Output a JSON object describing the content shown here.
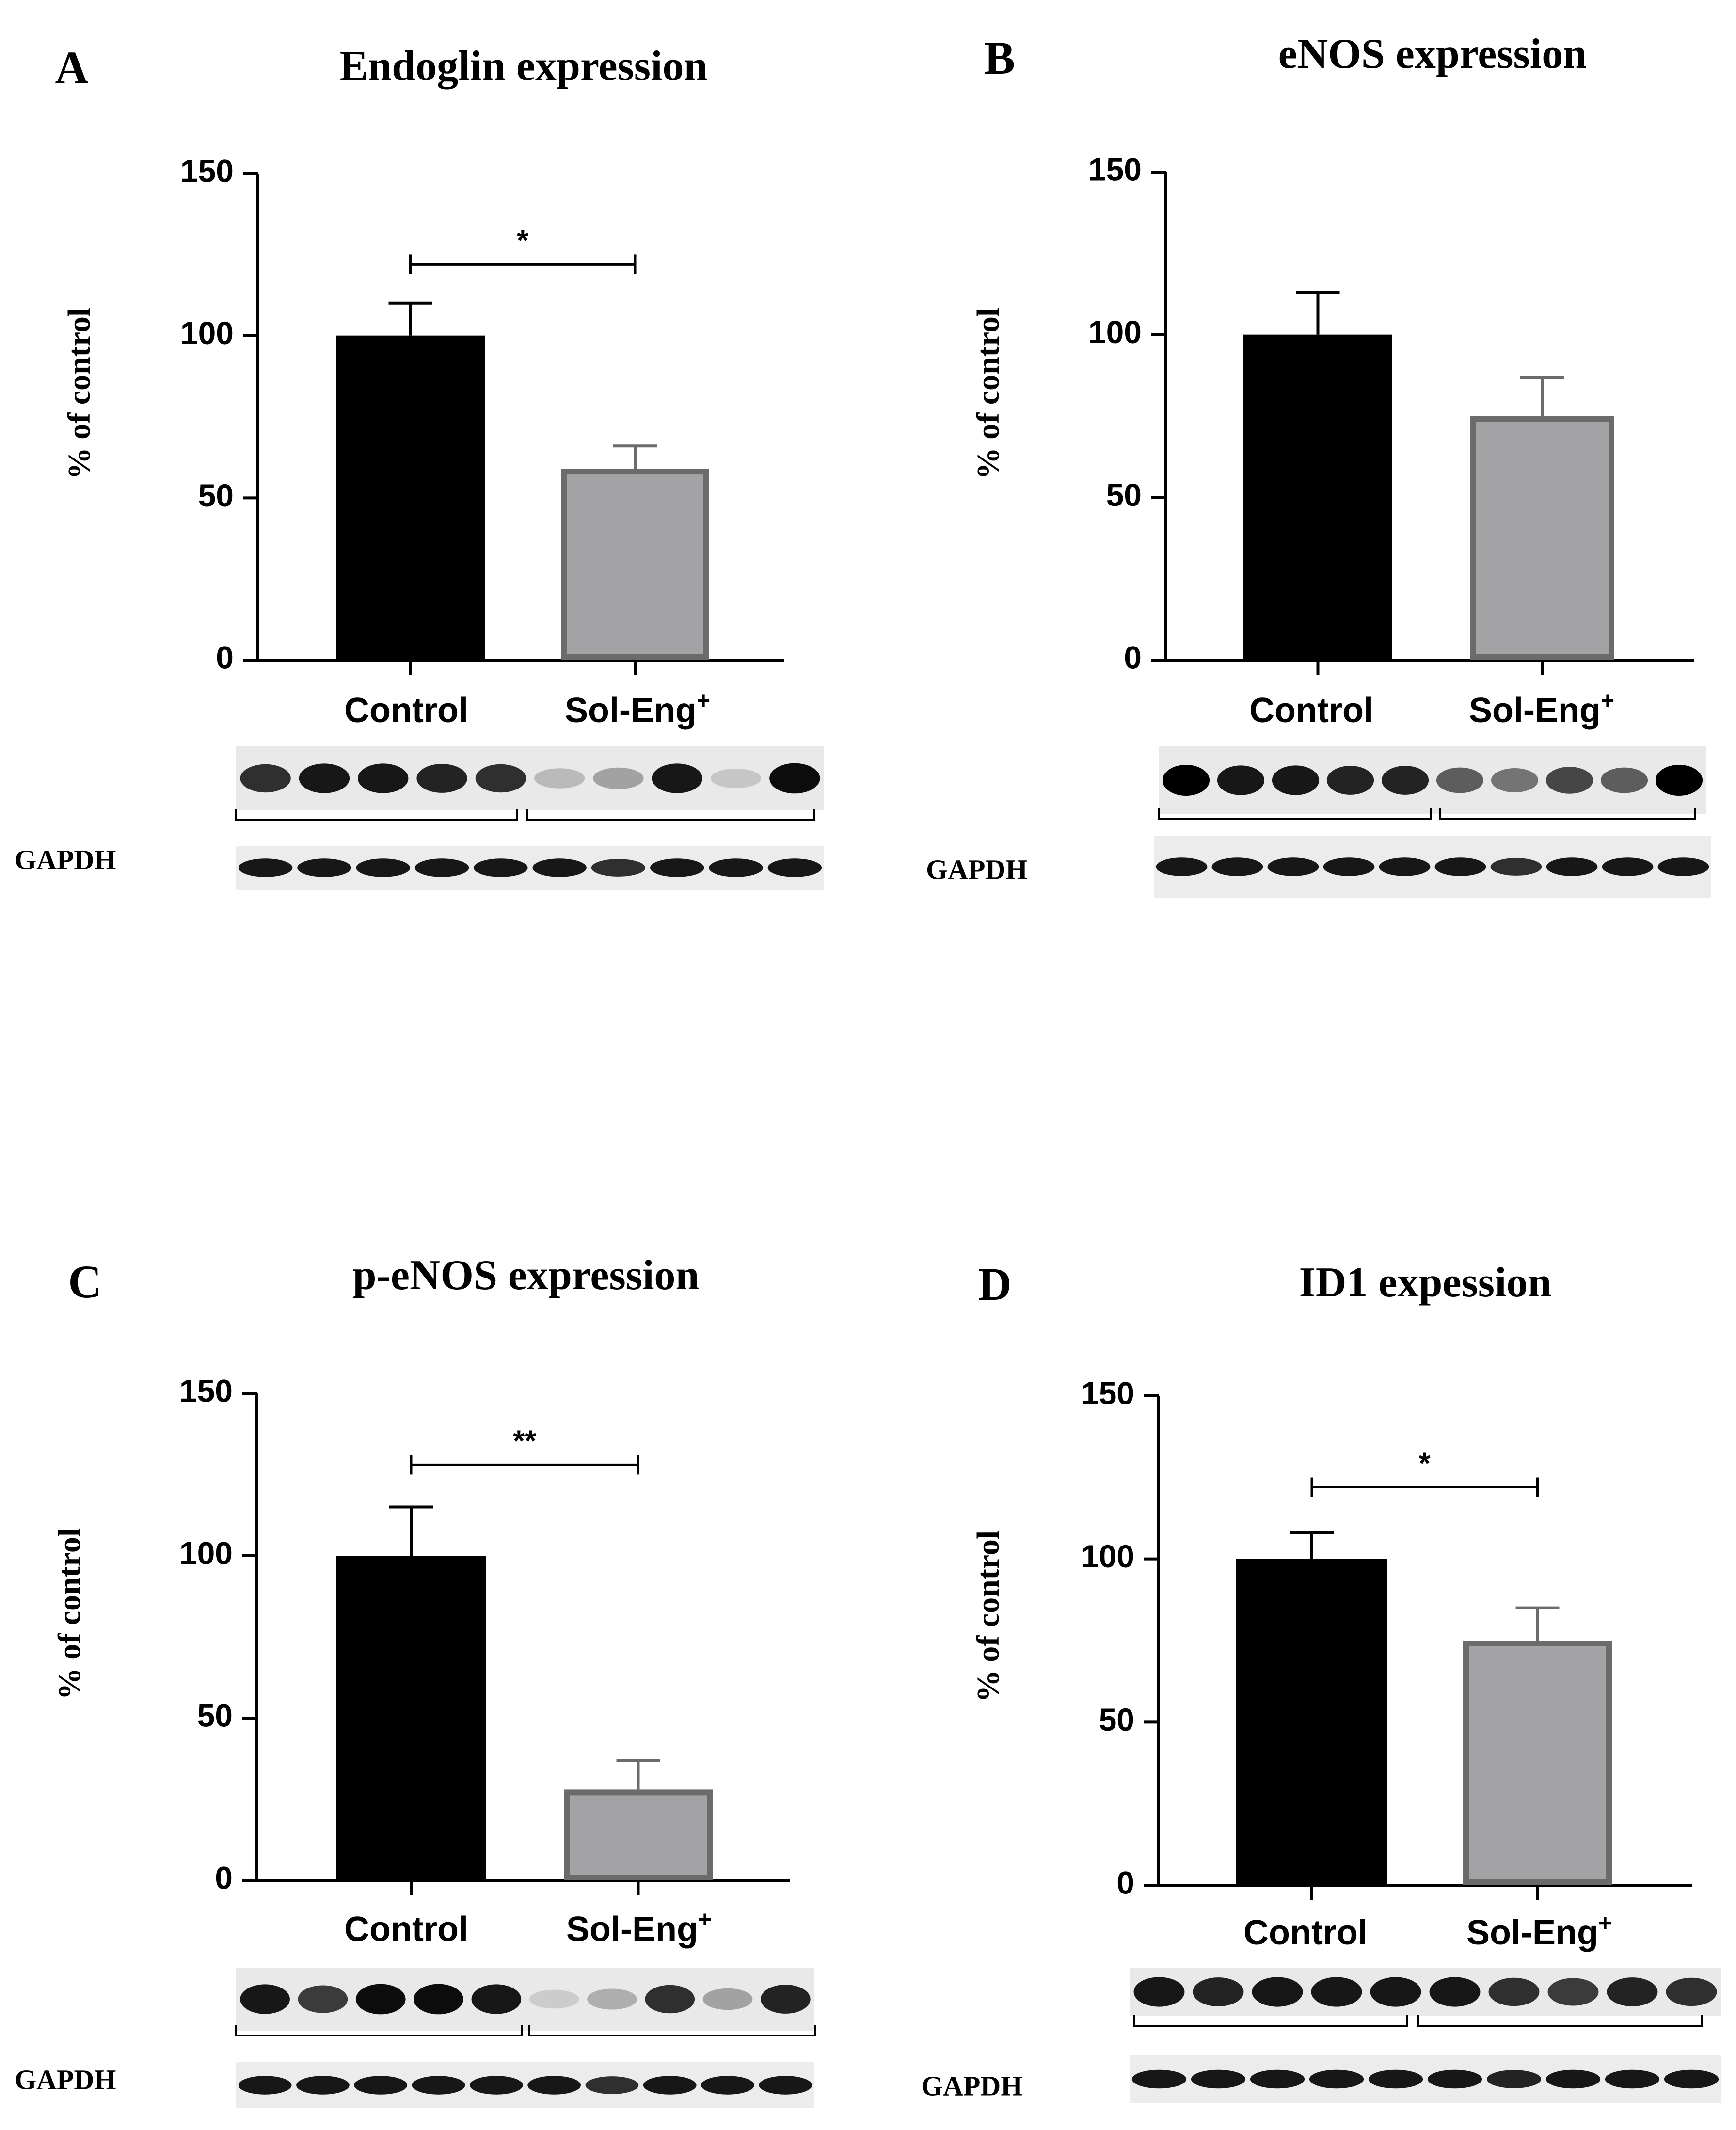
{
  "panels": [
    {
      "letter": "A",
      "chart_data": {
        "type": "bar",
        "title": "Endoglin expression",
        "ylabel": "% of control",
        "xlabel": "",
        "ylim": [
          0,
          150
        ],
        "yticks": [
          "0",
          "50",
          "100",
          "150"
        ],
        "categories": [
          "Control",
          "Sol-Eng"
        ],
        "category_superscripts": [
          "",
          "+"
        ],
        "values": [
          100,
          59
        ],
        "errors": [
          10,
          7
        ],
        "bar_colors": [
          "#000000",
          "#a3a3a6"
        ],
        "bar_edge_colors": [
          "#000000",
          "#6b6b6b"
        ],
        "significance": "*",
        "sig_level": 122,
        "grid": false
      },
      "blot_label": "GAPDH",
      "blot_upper_intensity": [
        0.8,
        0.9,
        0.9,
        0.85,
        0.8,
        0.2,
        0.3,
        0.9,
        0.15,
        0.95
      ],
      "blot_lower_intensity": [
        0.9,
        0.9,
        0.9,
        0.9,
        0.9,
        0.9,
        0.8,
        0.9,
        0.9,
        0.9
      ]
    },
    {
      "letter": "B",
      "chart_data": {
        "type": "bar",
        "title": "eNOS expression",
        "ylabel": "% of control",
        "xlabel": "",
        "ylim": [
          0,
          150
        ],
        "yticks": [
          "0",
          "50",
          "100",
          "150"
        ],
        "categories": [
          "Control",
          "Sol-Eng"
        ],
        "category_superscripts": [
          "",
          "+"
        ],
        "values": [
          100,
          75
        ],
        "errors": [
          13,
          12
        ],
        "bar_colors": [
          "#000000",
          "#a3a3a6"
        ],
        "bar_edge_colors": [
          "#000000",
          "#6b6b6b"
        ],
        "significance": "",
        "sig_level": null,
        "grid": false
      },
      "blot_label": "GAPDH",
      "blot_upper_intensity": [
        1.0,
        0.9,
        0.9,
        0.85,
        0.85,
        0.6,
        0.5,
        0.7,
        0.6,
        1.0
      ],
      "blot_lower_intensity": [
        0.9,
        0.9,
        0.9,
        0.9,
        0.9,
        0.9,
        0.8,
        0.9,
        0.9,
        0.9
      ]
    },
    {
      "letter": "C",
      "chart_data": {
        "type": "bar",
        "title": "p-eNOS expression",
        "ylabel": "% of control",
        "xlabel": "",
        "ylim": [
          0,
          150
        ],
        "yticks": [
          "0",
          "50",
          "100",
          "150"
        ],
        "categories": [
          "Control",
          "Sol-Eng"
        ],
        "category_superscripts": [
          "",
          "+"
        ],
        "values": [
          100,
          28
        ],
        "errors": [
          15,
          9
        ],
        "bar_colors": [
          "#000000",
          "#a3a3a6"
        ],
        "bar_edge_colors": [
          "#000000",
          "#6b6b6b"
        ],
        "significance": "**",
        "sig_level": 128,
        "grid": false
      },
      "blot_label": "GAPDH",
      "blot_upper_intensity": [
        0.9,
        0.75,
        0.95,
        0.95,
        0.9,
        0.1,
        0.25,
        0.8,
        0.3,
        0.85
      ],
      "blot_lower_intensity": [
        0.9,
        0.9,
        0.9,
        0.9,
        0.9,
        0.9,
        0.8,
        0.9,
        0.9,
        0.9
      ]
    },
    {
      "letter": "D",
      "chart_data": {
        "type": "bar",
        "title": "ID1 expession",
        "ylabel": "% of control",
        "xlabel": "",
        "ylim": [
          0,
          150
        ],
        "yticks": [
          "0",
          "50",
          "100",
          "150"
        ],
        "categories": [
          "Control",
          "Sol-Eng"
        ],
        "category_superscripts": [
          "",
          "+"
        ],
        "values": [
          100,
          75
        ],
        "errors": [
          8,
          10
        ],
        "bar_colors": [
          "#000000",
          "#a3a3a6"
        ],
        "bar_edge_colors": [
          "#000000",
          "#6b6b6b"
        ],
        "significance": "*",
        "sig_level": 122,
        "grid": false
      },
      "blot_label": "GAPDH",
      "blot_upper_intensity": [
        0.9,
        0.85,
        0.9,
        0.9,
        0.9,
        0.9,
        0.8,
        0.75,
        0.85,
        0.8
      ],
      "blot_lower_intensity": [
        0.9,
        0.9,
        0.9,
        0.9,
        0.9,
        0.9,
        0.85,
        0.9,
        0.9,
        0.9
      ]
    }
  ]
}
